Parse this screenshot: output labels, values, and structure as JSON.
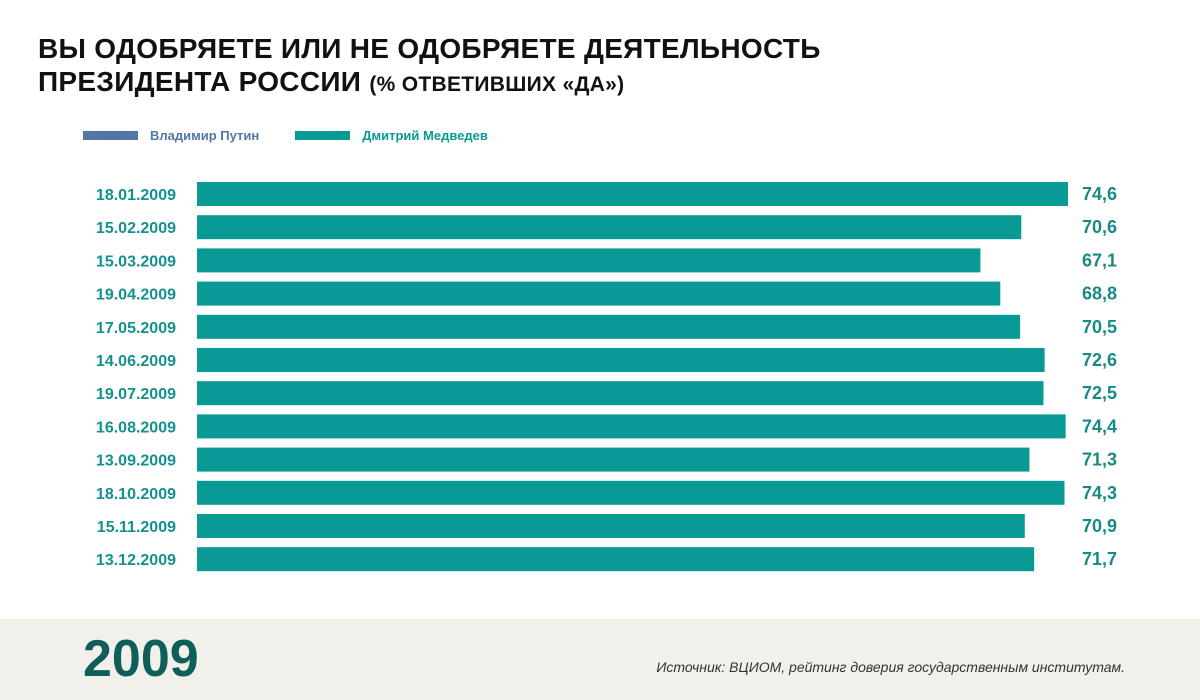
{
  "title_line1": "ВЫ ОДОБРЯЕТЕ ИЛИ НЕ ОДОБРЯЕТЕ ДЕЯТЕЛЬНОСТЬ",
  "title_line2": "ПРЕЗИДЕНТА РОССИИ",
  "title_sub": "(% ОТВЕТИВШИХ «ДА»)",
  "footer": {
    "year": "2009",
    "source": "Источник: ВЦИОМ, рейтинг доверия государственным институтам."
  },
  "colors": {
    "putin": "#5077a8",
    "medvedev": "#0a9a96",
    "label": "#13918e",
    "value": "#178a86"
  },
  "chart_data": {
    "type": "bar",
    "orientation": "horizontal",
    "title": "ВЫ ОДОБРЯЕТЕ ИЛИ НЕ ОДОБРЯЕТЕ ДЕЯТЕЛЬНОСТЬ ПРЕЗИДЕНТА РОССИИ (% ОТВЕТИВШИХ «ДА»)",
    "legend": [
      {
        "name": "Владимир Путин",
        "color": "#5077a8"
      },
      {
        "name": "Дмитрий Медведев",
        "color": "#0a9a96"
      }
    ],
    "legend_position": "top-left",
    "categories": [
      "18.01.2009",
      "15.02.2009",
      "15.03.2009",
      "19.04.2009",
      "17.05.2009",
      "14.06.2009",
      "19.07.2009",
      "16.08.2009",
      "13.09.2009",
      "18.10.2009",
      "15.11.2009",
      "13.12.2009"
    ],
    "series": [
      {
        "name": "Дмитрий Медведев",
        "values": [
          74.6,
          70.6,
          67.1,
          68.8,
          70.5,
          72.6,
          72.5,
          74.4,
          71.3,
          74.3,
          70.9,
          71.7
        ],
        "labels": [
          "74,6",
          "70,6",
          "67,1",
          "68,8",
          "70,5",
          "72,6",
          "72,5",
          "74,4",
          "71,3",
          "74,3",
          "70,9",
          "71,7"
        ]
      }
    ],
    "xlim": [
      0,
      74.6
    ],
    "grid": false
  }
}
